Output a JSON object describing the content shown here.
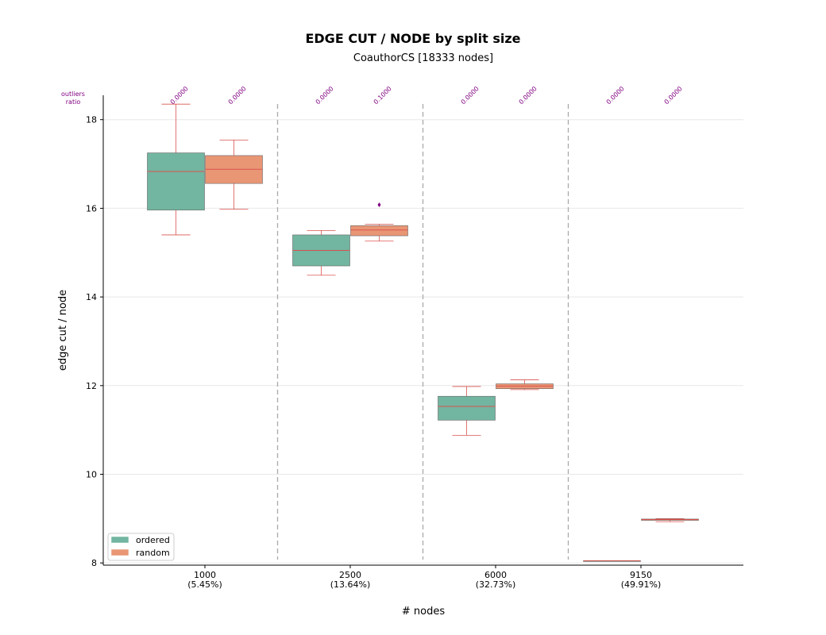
{
  "chart_data": {
    "type": "box",
    "title": "EDGE CUT / NODE by split size",
    "subtitle": "CoauthorCS [18333 nodes]",
    "xlabel": "# nodes",
    "ylabel": "edge cut / node",
    "ylim": [
      7.95,
      18.55
    ],
    "yticks": [
      8,
      10,
      12,
      14,
      16,
      18
    ],
    "grid": true,
    "legend_position": "lower-left",
    "outliers_label": [
      "outliers",
      "ratio"
    ],
    "categories": [
      {
        "label": "1000",
        "sublabel": "(5.45%)"
      },
      {
        "label": "2500",
        "sublabel": "(13.64%)"
      },
      {
        "label": "6000",
        "sublabel": "(32.73%)"
      },
      {
        "label": "9150",
        "sublabel": "(49.91%)"
      }
    ],
    "series": [
      {
        "name": "ordered",
        "color": "#72b5a0",
        "boxes": [
          {
            "whislo": 15.4,
            "q1": 15.96,
            "med": 16.83,
            "q3": 17.25,
            "whishi": 18.35,
            "fliers": [],
            "outlier_ratio": "0.0000"
          },
          {
            "whislo": 14.49,
            "q1": 14.7,
            "med": 15.05,
            "q3": 15.4,
            "whishi": 15.5,
            "fliers": [],
            "outlier_ratio": "0.0000"
          },
          {
            "whislo": 10.88,
            "q1": 11.22,
            "med": 11.53,
            "q3": 11.76,
            "whishi": 11.98,
            "fliers": [],
            "outlier_ratio": "0.0000"
          },
          {
            "whislo": 8.05,
            "q1": 8.05,
            "med": 8.05,
            "q3": 8.05,
            "whishi": 8.05,
            "fliers": [],
            "outlier_ratio": "0.0000"
          }
        ]
      },
      {
        "name": "random",
        "color": "#e99675",
        "boxes": [
          {
            "whislo": 15.98,
            "q1": 16.56,
            "med": 16.88,
            "q3": 17.19,
            "whishi": 17.54,
            "fliers": [],
            "outlier_ratio": "0.0000"
          },
          {
            "whislo": 15.26,
            "q1": 15.38,
            "med": 15.51,
            "q3": 15.61,
            "whishi": 15.64,
            "fliers": [
              16.08
            ],
            "outlier_ratio": "0.1000"
          },
          {
            "whislo": 11.91,
            "q1": 11.93,
            "med": 11.99,
            "q3": 12.04,
            "whishi": 12.13,
            "fliers": [],
            "outlier_ratio": "0.0000"
          },
          {
            "whislo": 8.93,
            "q1": 8.96,
            "med": 8.98,
            "q3": 8.99,
            "whishi": 9.0,
            "fliers": [],
            "outlier_ratio": "0.0000"
          }
        ]
      }
    ],
    "styles": {
      "median_color": "#d9534f",
      "whisker_color": "#d9534f",
      "flier_color": "#800080",
      "ratio_color": "#800080",
      "separator_color": "#aaaaaa",
      "grid_color": "#e8e8e8"
    }
  }
}
